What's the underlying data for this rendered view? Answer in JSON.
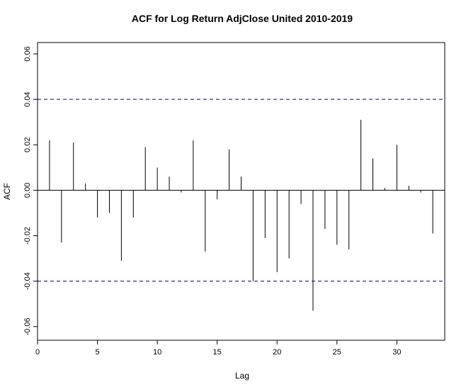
{
  "chart_data": {
    "type": "bar",
    "title": "ACF for Log Return AdjClose United 2010-2019",
    "xlabel": "Lag",
    "ylabel": "ACF",
    "xlim": [
      0,
      34
    ],
    "ylim": [
      -0.066,
      0.065
    ],
    "x_ticks": [
      0,
      5,
      10,
      15,
      20,
      25,
      30
    ],
    "y_ticks": [
      -0.06,
      -0.04,
      -0.02,
      0.0,
      0.02,
      0.04,
      0.06
    ],
    "y_tick_labels": [
      "-0.06",
      "-0.04",
      "-0.02",
      "0.00",
      "0.02",
      "0.04",
      "0.06"
    ],
    "confidence_bounds": [
      0.04,
      -0.04
    ],
    "confidence_color": "#00008b",
    "bar_color": "#000000",
    "lags": [
      1,
      2,
      3,
      4,
      5,
      6,
      7,
      8,
      9,
      10,
      11,
      12,
      13,
      14,
      15,
      16,
      17,
      18,
      19,
      20,
      21,
      22,
      23,
      24,
      25,
      26,
      27,
      28,
      29,
      30,
      31,
      32,
      33
    ],
    "values": [
      0.022,
      -0.023,
      0.021,
      0.003,
      -0.012,
      -0.01,
      -0.031,
      -0.012,
      0.019,
      0.01,
      0.006,
      -0.001,
      0.022,
      -0.027,
      -0.004,
      0.018,
      0.006,
      -0.04,
      -0.021,
      -0.036,
      -0.03,
      -0.006,
      -0.053,
      -0.017,
      -0.024,
      -0.026,
      0.031,
      0.014,
      0.001,
      0.02,
      0.002,
      -0.001,
      -0.019
    ]
  }
}
